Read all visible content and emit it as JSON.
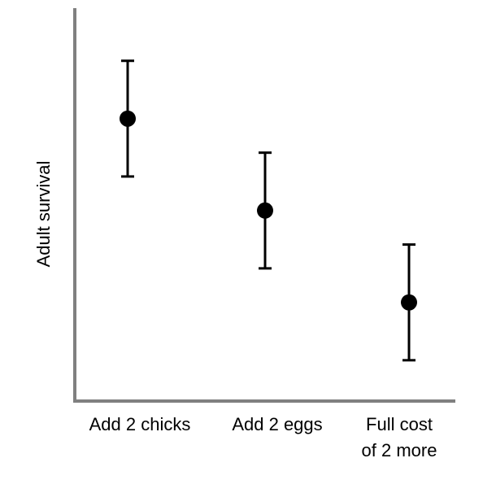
{
  "chart_data": {
    "type": "scatter",
    "title": "",
    "xlabel": "",
    "ylabel": "Adult survival",
    "categories": [
      [
        "Add 2 chicks"
      ],
      [
        "Add 2 eggs"
      ],
      [
        "Full cost",
        "of 2 more"
      ]
    ],
    "series": [
      {
        "values": [
          0.83,
          0.56,
          0.29
        ],
        "error_low": [
          0.66,
          0.39,
          0.12
        ],
        "error_high": [
          1.0,
          0.73,
          0.46
        ]
      }
    ],
    "ylim": [
      0,
      1.15
    ],
    "y_ticks_shown": false,
    "grid": false,
    "legend": "none",
    "colors": {
      "axis": "#808080",
      "markers": "#000000"
    }
  }
}
